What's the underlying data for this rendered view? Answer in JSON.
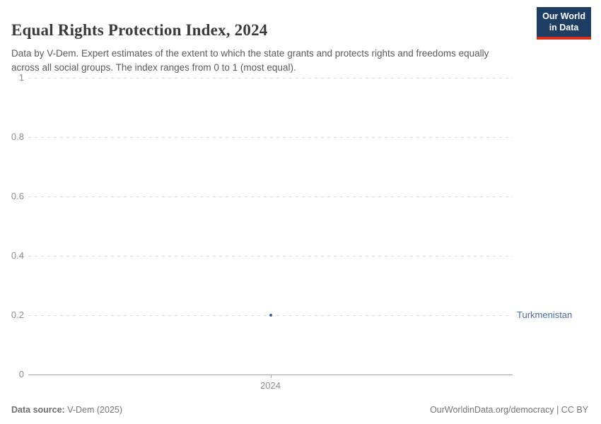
{
  "header": {
    "title": "Equal Rights Protection Index, 2024",
    "subtitle": "Data by V-Dem. Expert estimates of the extent to which the state grants and protects rights and freedoms equally across all social groups. The index ranges from 0 to 1 (most equal)."
  },
  "logo": {
    "line1": "Our World",
    "line2": "in Data",
    "bg_color": "#1d3d63",
    "accent_color": "#dc2c1e"
  },
  "chart_data": {
    "type": "scatter",
    "title": "Equal Rights Protection Index, 2024",
    "series": [
      {
        "name": "Turkmenistan",
        "x": [
          2024
        ],
        "y": [
          0.2
        ]
      }
    ],
    "xticks": [
      "2024"
    ],
    "yticks": [
      0,
      0.2,
      0.4,
      0.6,
      0.8,
      1
    ],
    "ylim": [
      0,
      1
    ],
    "grid": "horizontal-dashed",
    "legend_position": "right-of-point",
    "entity_label": "Turkmenistan",
    "entity_label_color": "#4c6a9c",
    "point_color": "#3d5c96"
  },
  "footer": {
    "source_label": "Data source:",
    "source_value": " V-Dem (2025)",
    "attribution": "OurWorldinData.org/democracy | CC BY"
  }
}
